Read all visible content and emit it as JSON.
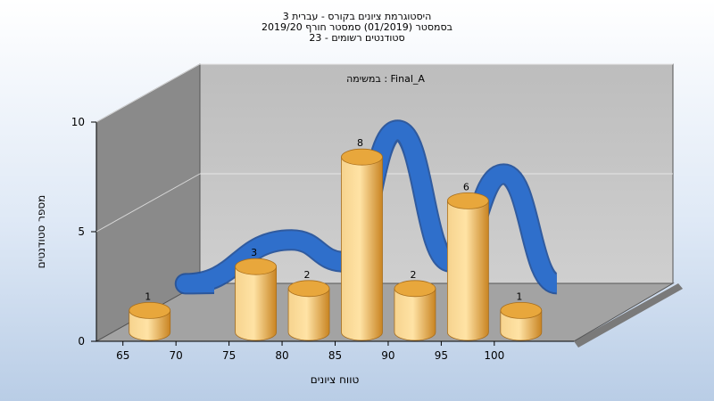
{
  "chart_data": {
    "type": "bar",
    "title_lines": [
      "היסטוגרמת ציונים בקורס - עברית 3",
      "בסמסטר  (01/2019)  סמסטר חורף 2019/20",
      "סטודנטים רשומים - 23"
    ],
    "subtitle": "במשימה : Final_A",
    "xlabel": "טווח ציונים",
    "ylabel": "מספר סטודנטים",
    "x_ticks": [
      "65",
      "70",
      "75",
      "80",
      "85",
      "90",
      "95",
      "100"
    ],
    "y_ticks": [
      "0",
      "5",
      "10"
    ],
    "ylim": [
      0,
      10
    ],
    "categories": [
      "65",
      "75",
      "80",
      "85",
      "90",
      "95",
      "100"
    ],
    "values": [
      1,
      3,
      2,
      8,
      2,
      6,
      1
    ],
    "data_labels": [
      "1",
      "3",
      "2",
      "8",
      "2",
      "6",
      "1"
    ],
    "bar_color": "#e8a73c",
    "curve_color": "#2f6fcb",
    "grid": true
  }
}
